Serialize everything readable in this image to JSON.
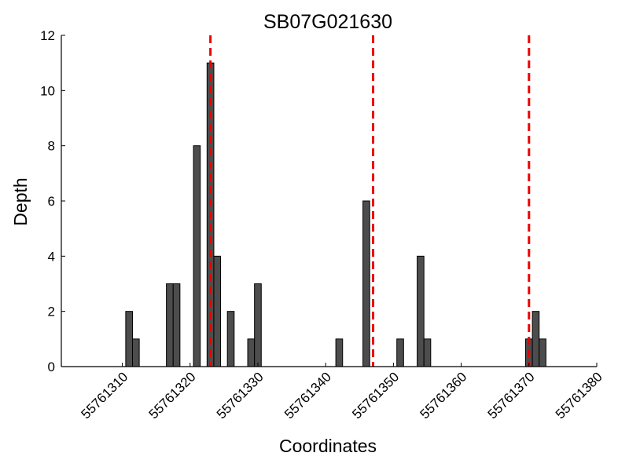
{
  "chart_data": {
    "type": "bar",
    "title": "SB07G021630",
    "xlabel": "Coordinates",
    "ylabel": "Depth",
    "xlim": [
      55761301,
      55761380
    ],
    "ylim": [
      0,
      12
    ],
    "xticks": [
      55761310,
      55761320,
      55761330,
      55761340,
      55761350,
      55761360,
      55761370,
      55761380
    ],
    "yticks": [
      0,
      2,
      4,
      6,
      8,
      10,
      12
    ],
    "bar_width": 1,
    "bar_color": "#4d4d4d",
    "grid": false,
    "x": [
      55761311,
      55761312,
      55761317,
      55761318,
      55761321,
      55761323,
      55761324,
      55761326,
      55761329,
      55761330,
      55761342,
      55761346,
      55761351,
      55761354,
      55761355,
      55761370,
      55761371,
      55761372
    ],
    "values": [
      2,
      1,
      3,
      3,
      8,
      11,
      4,
      2,
      1,
      3,
      1,
      6,
      1,
      4,
      1,
      1,
      2,
      1
    ],
    "reference_lines": {
      "style": "dashed",
      "color": "#ee0000",
      "x": [
        55761323,
        55761347,
        55761370
      ]
    }
  }
}
